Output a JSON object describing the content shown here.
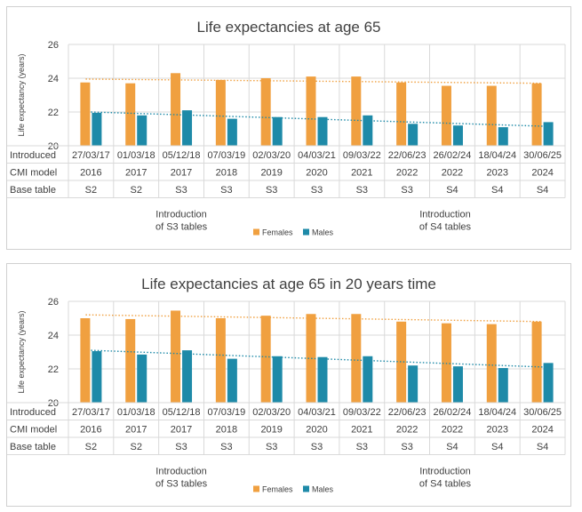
{
  "chart_data": [
    {
      "type": "bar",
      "title": "Life expectancies at age 65",
      "ylabel": "Life expectancy (years)",
      "ylim": [
        20,
        26
      ],
      "yticks": [
        "20",
        "22",
        "24",
        "26"
      ],
      "categories": [
        "27/03/17",
        "01/03/18",
        "05/12/18",
        "07/03/19",
        "02/03/20",
        "04/03/21",
        "09/03/22",
        "22/06/23",
        "26/02/24",
        "18/04/24",
        "30/06/25"
      ],
      "series": [
        {
          "name": "Females",
          "color": "#F0A040",
          "values": [
            23.75,
            23.7,
            24.3,
            23.9,
            24.0,
            24.1,
            24.1,
            23.75,
            23.55,
            23.55,
            23.7
          ],
          "trend": [
            23.95,
            23.7
          ]
        },
        {
          "name": "Males",
          "color": "#1E8AA8",
          "values": [
            21.95,
            21.8,
            22.1,
            21.6,
            21.7,
            21.7,
            21.8,
            21.3,
            21.2,
            21.1,
            21.4
          ],
          "trend": [
            22.0,
            21.15
          ]
        }
      ],
      "table": [
        {
          "label": "Introduced",
          "cells": [
            "27/03/17",
            "01/03/18",
            "05/12/18",
            "07/03/19",
            "02/03/20",
            "04/03/21",
            "09/03/22",
            "22/06/23",
            "26/02/24",
            "18/04/24",
            "30/06/25"
          ]
        },
        {
          "label": "CMI model",
          "cells": [
            "2016",
            "2017",
            "2017",
            "2018",
            "2019",
            "2020",
            "2021",
            "2022",
            "2022",
            "2023",
            "2024"
          ]
        },
        {
          "label": "Base table",
          "cells": [
            "S2",
            "S2",
            "S3",
            "S3",
            "S3",
            "S3",
            "S3",
            "S3",
            "S4",
            "S4",
            "S4"
          ]
        }
      ],
      "annotations": [
        {
          "lines": [
            "Introduction",
            "of S3 tables"
          ],
          "at_category": 2
        },
        {
          "lines": [
            "Introduction",
            "of S4 tables"
          ],
          "at_category": 8
        }
      ],
      "legend": [
        "Females",
        "Males"
      ]
    },
    {
      "type": "bar",
      "title": "Life expectancies at age 65 in 20 years time",
      "ylabel": "Life expectancy (years)",
      "ylim": [
        20,
        26
      ],
      "yticks": [
        "20",
        "22",
        "24",
        "26"
      ],
      "categories": [
        "27/03/17",
        "01/03/18",
        "05/12/18",
        "07/03/19",
        "02/03/20",
        "04/03/21",
        "09/03/22",
        "22/06/23",
        "26/02/24",
        "18/04/24",
        "30/06/25"
      ],
      "series": [
        {
          "name": "Females",
          "color": "#F0A040",
          "values": [
            25.0,
            24.95,
            25.45,
            25.0,
            25.15,
            25.25,
            25.25,
            24.8,
            24.7,
            24.65,
            24.8
          ],
          "trend": [
            25.2,
            24.8
          ]
        },
        {
          "name": "Males",
          "color": "#1E8AA8",
          "values": [
            23.05,
            22.85,
            23.1,
            22.6,
            22.75,
            22.7,
            22.75,
            22.2,
            22.15,
            22.05,
            22.35
          ],
          "trend": [
            23.1,
            22.1
          ]
        }
      ],
      "table": [
        {
          "label": "Introduced",
          "cells": [
            "27/03/17",
            "01/03/18",
            "05/12/18",
            "07/03/19",
            "02/03/20",
            "04/03/21",
            "09/03/22",
            "22/06/23",
            "26/02/24",
            "18/04/24",
            "30/06/25"
          ]
        },
        {
          "label": "CMI model",
          "cells": [
            "2016",
            "2017",
            "2017",
            "2018",
            "2019",
            "2020",
            "2021",
            "2022",
            "2022",
            "2023",
            "2024"
          ]
        },
        {
          "label": "Base table",
          "cells": [
            "S2",
            "S2",
            "S3",
            "S3",
            "S3",
            "S3",
            "S3",
            "S3",
            "S4",
            "S4",
            "S4"
          ]
        }
      ],
      "annotations": [
        {
          "lines": [
            "Introduction",
            "of S3 tables"
          ],
          "at_category": 2
        },
        {
          "lines": [
            "Introduction",
            "of S4 tables"
          ],
          "at_category": 8
        }
      ],
      "legend": [
        "Females",
        "Males"
      ]
    }
  ]
}
